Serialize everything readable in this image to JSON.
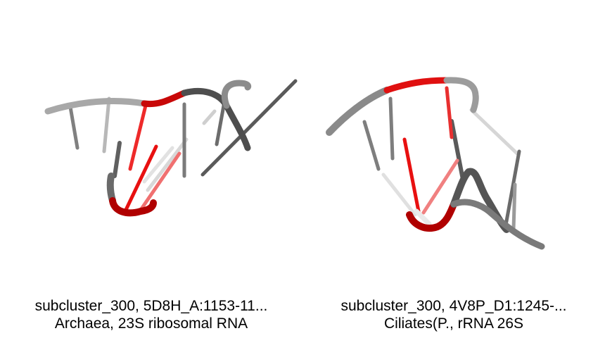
{
  "panels": [
    {
      "id": "left",
      "line1": "subcluster_300, 5D8H_A:1153-11...",
      "line2": "Archaea, 23S ribosomal RNA"
    },
    {
      "id": "right",
      "line1": "subcluster_300, 4V8P_D1:1245-...",
      "line2": "Ciliates(P., rRNA 26S"
    }
  ],
  "colors": {
    "backbone_grey": "#8a8a8a",
    "dark_grey": "#555555",
    "highlight_red": "#e01010",
    "dark_red": "#b00000"
  }
}
